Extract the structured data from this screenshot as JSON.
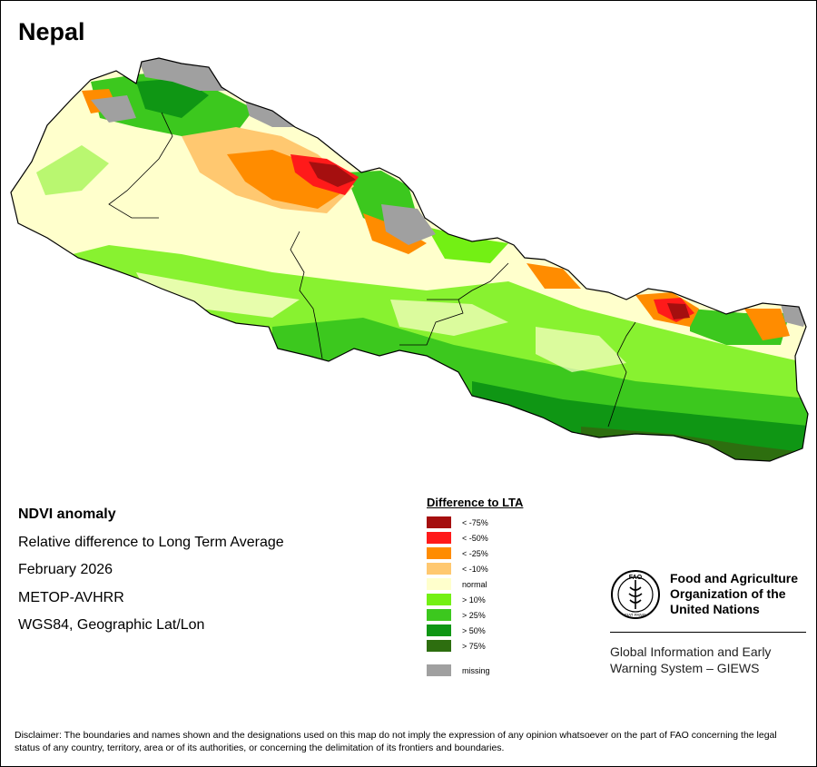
{
  "map": {
    "title": "Nepal"
  },
  "info": {
    "product": "NDVI anomaly",
    "description": "Relative difference to Long Term Average",
    "period": "February 2026",
    "sensor": "METOP-AVHRR",
    "projection": "WGS84, Geographic Lat/Lon"
  },
  "legend": {
    "title": "Difference to LTA",
    "classes": [
      {
        "label": "< -75%",
        "color": "#a50f0f"
      },
      {
        "label": "< -50%",
        "color": "#ff1a1a"
      },
      {
        "label": "< -25%",
        "color": "#ff8c00"
      },
      {
        "label": "< -10%",
        "color": "#ffc870"
      },
      {
        "label": "normal",
        "color": "#ffffcc"
      },
      {
        "label": "> 10%",
        "color": "#73f014"
      },
      {
        "label": "> 25%",
        "color": "#3cc81e"
      },
      {
        "label": "> 50%",
        "color": "#0f9614"
      },
      {
        "label": "> 75%",
        "color": "#2d6e0f"
      }
    ],
    "missing": {
      "label": "missing",
      "color": "#a0a0a0"
    }
  },
  "org": {
    "name_line1": "Food and Agriculture",
    "name_line2": "Organization of the",
    "name_line3": "United Nations",
    "logo_text": "FAO",
    "logo_motto": "FIAT PANIS",
    "giews_line1": "Global Information and Early",
    "giews_line2": "Warning System – GIEWS"
  },
  "disclaimer": "Disclaimer: The boundaries and names shown and the designations used on this map do not imply the expression of any opinion whatsoever on the part of FAO concerning the legal status of any country, territory, area or of its authorities, or concerning the delimitation of its frontiers and boundaries."
}
